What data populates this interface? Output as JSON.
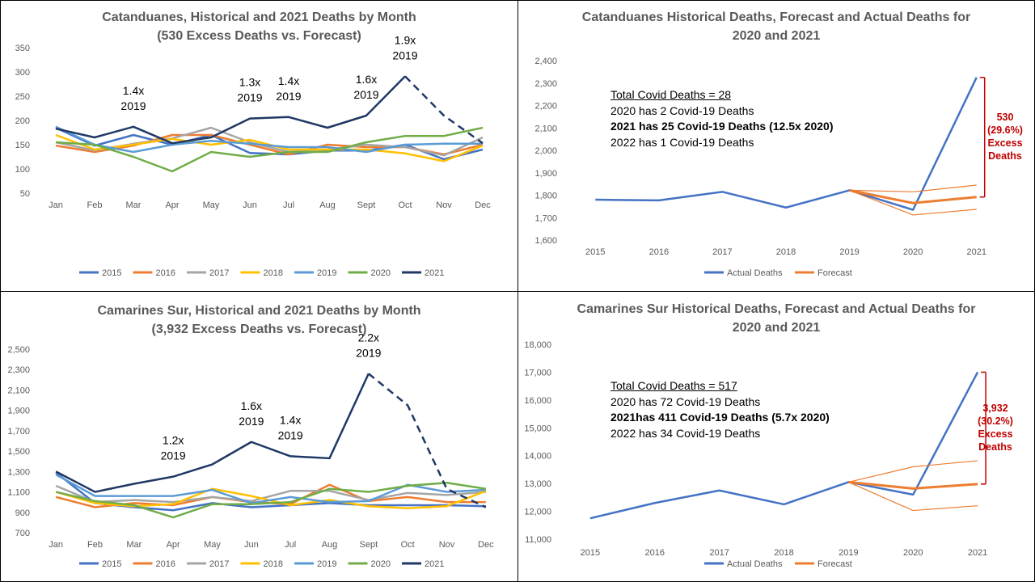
{
  "colors": {
    "2015": "#4472c4",
    "2016": "#ed7d31",
    "2017": "#a5a5a5",
    "2018": "#ffc000",
    "2019": "#5b9bd5",
    "2020": "#70ad47",
    "2021": "#203864",
    "actual": "#4472c4",
    "forecast": "#ed7d31",
    "excess": "#c00000"
  },
  "panels": [
    {
      "title_line1": "Catanduanes, Historical and 2021 Deaths by Month",
      "title_line2": "(530 Excess Deaths vs. Forecast)"
    },
    {
      "title_line1": "Catanduanes Historical Deaths, Forecast and Actual Deaths for",
      "title_line2": "2020 and 2021",
      "note": {
        "total": "Total Covid Deaths = 28",
        "l2020": "2020 has 2 Covid-19 Deaths",
        "l2021": "2021 has 25 Covid-19 Deaths (12.5x 2020)",
        "l2022": "2022 has 1 Covid-19 Deaths"
      },
      "excess": {
        "count": "530",
        "pct": "(29.6%)",
        "word1": "Excess",
        "word2": "Deaths"
      }
    },
    {
      "title_line1": "Camarines Sur, Historical and 2021 Deaths by Month",
      "title_line2": "(3,932 Excess Deaths vs. Forecast)"
    },
    {
      "title_line1": "Camarines Sur Historical Deaths, Forecast and Actual Deaths for",
      "title_line2": "2020 and 2021",
      "note": {
        "total": "Total Covid Deaths = 517",
        "l2020": "2020 has 72 Covid-19 Deaths",
        "l2021": "2021has 411 Covid-19 Deaths (5.7x 2020)",
        "l2022": "2022 has 34 Covid-19 Deaths"
      },
      "excess": {
        "count": "3,932",
        "pct": "(30.2%)",
        "word1": "Excess",
        "word2": "Deaths"
      }
    }
  ],
  "chart_data": [
    {
      "type": "line",
      "title": "Catanduanes, Historical and 2021 Deaths by Month (530 Excess Deaths vs. Forecast)",
      "categories": [
        "Jan",
        "Feb",
        "Mar",
        "Apr",
        "May",
        "Jun",
        "Jul",
        "Aug",
        "Sept",
        "Oct",
        "Nov",
        "Dec"
      ],
      "ylim": [
        50,
        350
      ],
      "yticks": [
        50,
        100,
        150,
        200,
        250,
        300,
        350
      ],
      "legend": "bottom",
      "series": [
        {
          "name": "2015",
          "values": [
            185,
            148,
            170,
            150,
            170,
            133,
            130,
            138,
            138,
            150,
            120,
            140
          ]
        },
        {
          "name": "2016",
          "values": [
            148,
            135,
            148,
            170,
            170,
            150,
            130,
            150,
            145,
            145,
            130,
            150
          ]
        },
        {
          "name": "2017",
          "values": [
            155,
            138,
            152,
            163,
            185,
            155,
            135,
            140,
            150,
            145,
            128,
            165
          ]
        },
        {
          "name": "2018",
          "values": [
            170,
            140,
            150,
            162,
            150,
            160,
            140,
            140,
            140,
            132,
            116,
            148
          ]
        },
        {
          "name": "2019",
          "values": [
            187,
            150,
            135,
            150,
            158,
            152,
            145,
            145,
            135,
            150,
            152,
            152
          ]
        },
        {
          "name": "2020",
          "values": [
            155,
            150,
            125,
            95,
            135,
            125,
            135,
            135,
            155,
            168,
            168,
            185
          ]
        },
        {
          "name": "2021",
          "values": [
            183,
            165,
            187,
            153,
            165,
            204,
            207,
            185,
            210,
            291,
            210,
            153
          ],
          "dashed_from_index": 9
        }
      ],
      "annotations": [
        {
          "index": 2,
          "ratio": "1.4x",
          "ref": "2019"
        },
        {
          "index": 5,
          "ratio": "1.3x",
          "ref": "2019"
        },
        {
          "index": 6,
          "ratio": "1.4x",
          "ref": "2019"
        },
        {
          "index": 8,
          "ratio": "1.6x",
          "ref": "2019"
        },
        {
          "index": 9,
          "ratio": "1.9x",
          "ref": "2019"
        }
      ]
    },
    {
      "type": "line",
      "title": "Catanduanes Historical Deaths, Forecast and Actual Deaths for 2020 and 2021",
      "categories": [
        "2015",
        "2016",
        "2017",
        "2018",
        "2019",
        "2020",
        "2021"
      ],
      "ylim": [
        1600,
        2400
      ],
      "yticks": [
        1600,
        1700,
        1800,
        1900,
        2000,
        2100,
        2200,
        2300,
        2400
      ],
      "tick_format": "thousands",
      "legend": "bottom",
      "series": [
        {
          "name": "Actual Deaths",
          "values": [
            1780,
            1777,
            1815,
            1745,
            1822,
            1735,
            2325
          ]
        },
        {
          "name": "Forecast",
          "values": [
            null,
            null,
            null,
            null,
            1822,
            1765,
            1792
          ]
        },
        {
          "name": "",
          "role": "upper_bound",
          "values": [
            null,
            null,
            null,
            null,
            1822,
            1815,
            1845
          ]
        },
        {
          "name": "",
          "role": "lower_bound",
          "values": [
            null,
            null,
            null,
            null,
            1822,
            1712,
            1737
          ]
        }
      ]
    },
    {
      "type": "line",
      "title": "Camarines Sur, Historical and 2021 Deaths by Month (3,932 Excess Deaths vs. Forecast)",
      "categories": [
        "Jan",
        "Feb",
        "Mar",
        "Apr",
        "May",
        "Jun",
        "Jul",
        "Aug",
        "Sept",
        "Oct",
        "Nov",
        "Dec"
      ],
      "ylim": [
        700,
        2500
      ],
      "yticks": [
        700,
        900,
        1100,
        1300,
        1500,
        1700,
        1900,
        2100,
        2300,
        2500
      ],
      "tick_format": "thousands",
      "legend": "bottom",
      "series": [
        {
          "name": "2015",
          "values": [
            1290,
            990,
            950,
            920,
            990,
            950,
            970,
            990,
            970,
            970,
            970,
            960
          ]
        },
        {
          "name": "2016",
          "values": [
            1050,
            950,
            990,
            970,
            1050,
            1000,
            980,
            1170,
            1010,
            1050,
            1000,
            1000
          ]
        },
        {
          "name": "2017",
          "values": [
            1160,
            1000,
            1020,
            1000,
            1050,
            1010,
            1110,
            1110,
            1020,
            1090,
            1070,
            1100
          ]
        },
        {
          "name": "2018",
          "values": [
            1100,
            990,
            960,
            980,
            1130,
            1060,
            970,
            1020,
            960,
            940,
            960,
            1110
          ]
        },
        {
          "name": "2019",
          "values": [
            1270,
            1060,
            1060,
            1060,
            1120,
            990,
            1050,
            1000,
            1010,
            1170,
            1100,
            1120
          ]
        },
        {
          "name": "2020",
          "values": [
            1100,
            1010,
            970,
            850,
            980,
            980,
            1000,
            1130,
            1100,
            1160,
            1190,
            1130
          ]
        },
        {
          "name": "2021",
          "values": [
            1300,
            1100,
            1180,
            1250,
            1370,
            1590,
            1450,
            1430,
            2260,
            1950,
            1130,
            950
          ],
          "dashed_from_index": 8
        }
      ],
      "annotations": [
        {
          "index": 3,
          "ratio": "1.2x",
          "ref": "2019"
        },
        {
          "index": 5,
          "ratio": "1.6x",
          "ref": "2019"
        },
        {
          "index": 6,
          "ratio": "1.4x",
          "ref": "2019"
        },
        {
          "index": 8,
          "ratio": "2.2x",
          "ref": "2019"
        }
      ]
    },
    {
      "type": "line",
      "title": "Camarines Sur Historical Deaths, Forecast and Actual Deaths for 2020 and 2021",
      "categories": [
        "2015",
        "2016",
        "2017",
        "2018",
        "2019",
        "2020",
        "2021"
      ],
      "ylim": [
        11000,
        18000
      ],
      "yticks": [
        11000,
        12000,
        13000,
        14000,
        15000,
        16000,
        17000,
        18000
      ],
      "tick_format": "thousands",
      "legend": "bottom",
      "series": [
        {
          "name": "Actual Deaths",
          "values": [
            11750,
            12300,
            12750,
            12250,
            13050,
            12600,
            17000
          ]
        },
        {
          "name": "Forecast",
          "values": [
            null,
            null,
            null,
            null,
            13050,
            12820,
            12980
          ]
        },
        {
          "name": "",
          "role": "upper_bound",
          "values": [
            null,
            null,
            null,
            null,
            13050,
            13600,
            13820
          ]
        },
        {
          "name": "",
          "role": "lower_bound",
          "values": [
            null,
            null,
            null,
            null,
            13050,
            12030,
            12200
          ]
        }
      ]
    }
  ]
}
